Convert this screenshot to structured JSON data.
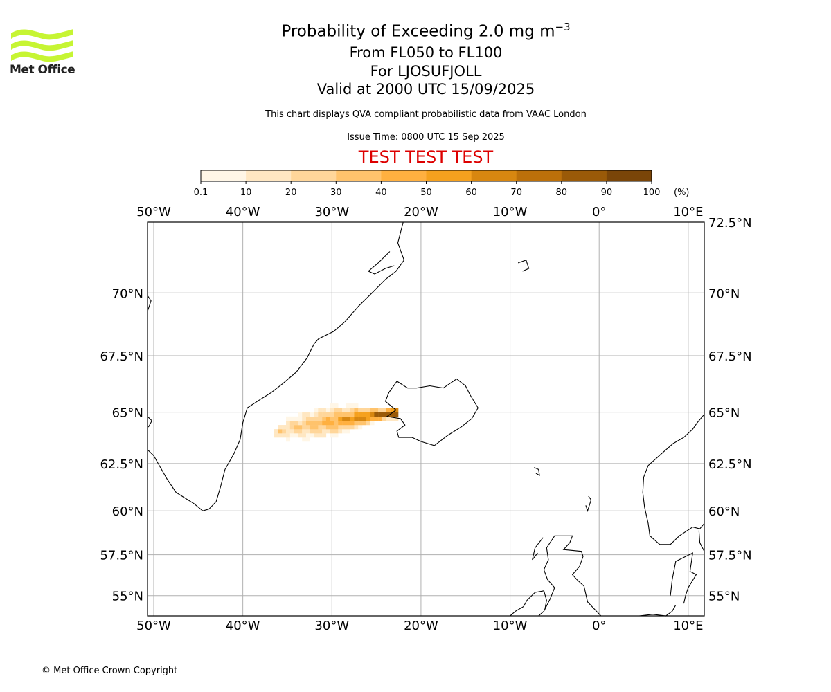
{
  "header": {
    "title": "Probability of Exceeding 2.0 mg m",
    "title_superscript": "−3",
    "level_range": "From FL050 to FL100",
    "volcano": "For LJOSUFJOLL",
    "valid_time": "Valid at 2000 UTC 15/09/2025",
    "subtitle": "This chart displays QVA compliant probabilistic data from VAAC London",
    "issue_time": "Issue Time: 0800 UTC 15 Sep 2025",
    "test_banner": "TEST TEST TEST",
    "test_color": "#dd0000"
  },
  "logo": {
    "text": "Met Office",
    "icon": "met-office-wave-icon",
    "color": "#c6f533"
  },
  "colorbar": {
    "ticks": [
      "0.1",
      "10",
      "20",
      "30",
      "40",
      "50",
      "60",
      "70",
      "80",
      "90",
      "100"
    ],
    "unit": "(%)",
    "colors": [
      "#fff6e6",
      "#ffe7c2",
      "#ffd69a",
      "#ffc36c",
      "#ffb040",
      "#f5a11e",
      "#d88710",
      "#bc700a",
      "#9a5a08",
      "#7a4508"
    ]
  },
  "axes": {
    "lon_labels": [
      "50°W",
      "40°W",
      "30°W",
      "20°W",
      "10°W",
      "0°",
      "10°E"
    ],
    "lat_labels": [
      "70°N",
      "67.5°N",
      "65°N",
      "62.5°N",
      "60°N",
      "57.5°N",
      "55°N"
    ],
    "lat_top_label": "72.5°N",
    "lon_range": [
      -50.7,
      11.8
    ],
    "lat_range": [
      53.7,
      72.5
    ],
    "grid": true
  },
  "plume": {
    "source": "Ljosufjoll",
    "source_lon": -22.6,
    "source_lat": 64.9,
    "direction": "west-southwest",
    "max_probability_percent": 100
  },
  "footer": {
    "copyright": "© Met Office Crown Copyright"
  }
}
